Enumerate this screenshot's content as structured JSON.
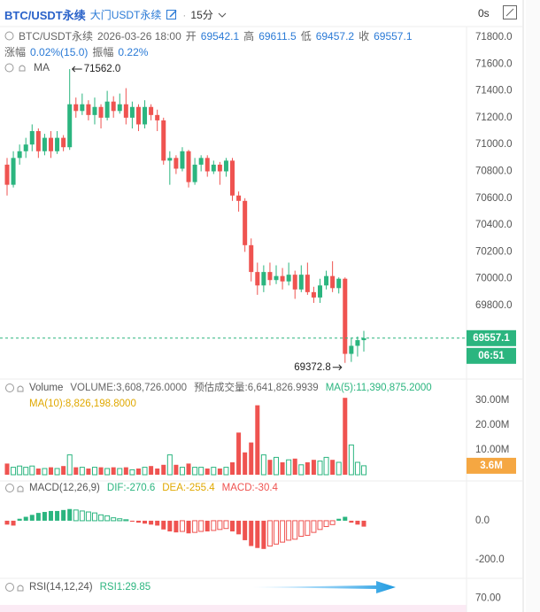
{
  "header": {
    "symbol": "BTC/USDT永续",
    "index_name": "大门USDT永续",
    "interval": "15分",
    "countdown": "0s"
  },
  "info": {
    "symbol": "BTC/USDT永续",
    "time": "2026-03-26 18:00",
    "fields": [
      {
        "label": "开",
        "value": "69542.1"
      },
      {
        "label": "高",
        "value": "69611.5"
      },
      {
        "label": "低",
        "value": "69457.2"
      },
      {
        "label": "收",
        "value": "69557.1"
      }
    ],
    "stats": [
      {
        "label": "涨幅",
        "value": "0.02%(15.0)"
      },
      {
        "label": "振幅",
        "value": "0.22%"
      }
    ]
  },
  "chart_data": [
    {
      "type": "candlestick",
      "legend": "MA",
      "up_color": "#2bb57f",
      "down_color": "#ef5350",
      "open": [
        70850,
        70700,
        70900,
        70950,
        71000,
        71100,
        70950,
        71050,
        70950,
        71050,
        70980,
        71300,
        71250,
        71300,
        71220,
        71280,
        71200,
        71320,
        71250,
        71300,
        71200,
        71280,
        71150,
        71280,
        71220,
        71180,
        70880,
        70900,
        70820,
        70950,
        70720,
        70850,
        70900,
        70800,
        70850,
        70800,
        70880,
        70620,
        70580,
        70250,
        70050,
        69950,
        70050,
        69990,
        70020,
        69980,
        70030,
        69920,
        70030,
        69900,
        69860,
        69950,
        70020,
        69930,
        70000,
        69440,
        69500,
        69542.1
      ],
      "high": [
        70900,
        70950,
        71000,
        71050,
        71150,
        71120,
        71080,
        71100,
        71100,
        71070,
        71562,
        71350,
        71380,
        71330,
        71350,
        71300,
        71400,
        71360,
        71380,
        71420,
        71320,
        71300,
        71330,
        71300,
        71260,
        71200,
        70950,
        70920,
        70980,
        70960,
        70900,
        70920,
        70920,
        70880,
        70870,
        70900,
        70900,
        70650,
        70600,
        70300,
        70120,
        70100,
        70120,
        70100,
        70080,
        70120,
        70060,
        70100,
        70120,
        69940,
        70000,
        70060,
        70130,
        70010,
        70010,
        69560,
        69570,
        69611.5
      ],
      "low": [
        70620,
        70680,
        70850,
        70900,
        70950,
        70900,
        70920,
        70900,
        70930,
        70950,
        70960,
        71200,
        71220,
        71180,
        71150,
        71120,
        71180,
        71200,
        71230,
        71150,
        71120,
        71100,
        71120,
        71180,
        71100,
        70850,
        70700,
        70780,
        70800,
        70680,
        70700,
        70800,
        70760,
        70780,
        70700,
        70760,
        70580,
        70500,
        70200,
        69980,
        69880,
        69900,
        69950,
        69960,
        69920,
        69950,
        69850,
        69900,
        69880,
        69820,
        69820,
        69920,
        69900,
        69890,
        69372.8,
        69380,
        69420,
        69457.2
      ],
      "close": [
        70700,
        70900,
        70950,
        71000,
        71100,
        70950,
        71050,
        70950,
        71050,
        70980,
        71300,
        71250,
        71300,
        71220,
        71280,
        71200,
        71320,
        71250,
        71300,
        71200,
        71280,
        71150,
        71280,
        71220,
        71180,
        70880,
        70900,
        70820,
        70950,
        70720,
        70850,
        70900,
        70800,
        70850,
        70800,
        70880,
        70620,
        70580,
        70250,
        70050,
        69950,
        70050,
        69990,
        70020,
        69980,
        70030,
        69920,
        70030,
        69900,
        69860,
        69950,
        70020,
        69930,
        70000,
        69440,
        69500,
        69542.1,
        69557.1
      ],
      "ylim": [
        69272,
        71879
      ],
      "yticks": [
        {
          "value": 71800,
          "label": "71800.0"
        },
        {
          "value": 71600,
          "label": "71600.0"
        },
        {
          "value": 71400,
          "label": "71400.0"
        },
        {
          "value": 71200,
          "label": "71200.0"
        },
        {
          "value": 71000,
          "label": "71000.0"
        },
        {
          "value": 70800,
          "label": "70800.0"
        },
        {
          "value": 70600,
          "label": "70600.0"
        },
        {
          "value": 70400,
          "label": "70400.0"
        },
        {
          "value": 70200,
          "label": "70200.0"
        },
        {
          "value": 70000,
          "label": "70000.0"
        },
        {
          "value": 69800,
          "label": "69800.0"
        }
      ],
      "annotations": [
        {
          "value": 71562,
          "label": "71562.0"
        },
        {
          "value": 69372.8,
          "label": "69372.8"
        }
      ],
      "last_price": {
        "value": 69557.1,
        "label": "69557.1"
      },
      "countdown": "06:51"
    },
    {
      "type": "volume",
      "legend": "Volume",
      "indicators": [
        {
          "text": "VOLUME:3,608,726.0000",
          "color": "#666"
        },
        {
          "text": "预估成交量:6,641,826.9939",
          "color": "#666"
        },
        {
          "text": "MA(5):11,390,875.2000",
          "color": "#2bb57f"
        },
        {
          "text": "MA(10):8,826,198.8000",
          "color": "#e0a800"
        }
      ],
      "values": [
        4500000,
        3000000,
        3500000,
        3000000,
        3500000,
        2500000,
        2500000,
        3000000,
        2500000,
        3500000,
        8000000,
        3000000,
        3000000,
        2500000,
        3000000,
        3000000,
        2500000,
        3000000,
        2500000,
        3000000,
        2000000,
        2500000,
        3000000,
        3500000,
        2500000,
        4000000,
        8000000,
        4000000,
        3000000,
        4500000,
        3000000,
        3000000,
        2500000,
        3000000,
        2500000,
        3000000,
        5000000,
        17000000,
        9000000,
        13000000,
        28000000,
        8000000,
        6000000,
        7000000,
        5000000,
        6000000,
        6500000,
        4000000,
        5000000,
        6000000,
        5500000,
        7000000,
        6000000,
        5000000,
        31000000,
        12000000,
        5000000,
        3608726
      ],
      "ylim": [
        0,
        32500000
      ],
      "yticks": [
        {
          "value": 30000000,
          "label": "30.00M"
        },
        {
          "value": 20000000,
          "label": "20.00M"
        },
        {
          "value": 10000000,
          "label": "10.00M"
        }
      ],
      "last_value": {
        "value": 3608726,
        "label": "3.6M"
      }
    },
    {
      "type": "macd",
      "legend": "MACD(12,26,9)",
      "indicators": [
        {
          "text": "DIF:-270.6",
          "color": "#2bb57f"
        },
        {
          "text": "DEA:-255.4",
          "color": "#e0a800"
        },
        {
          "text": "MACD:-30.4",
          "color": "#ef5350"
        }
      ],
      "values": [
        -20,
        -25,
        10,
        20,
        30,
        40,
        45,
        50,
        50,
        55,
        60,
        55,
        50,
        45,
        40,
        30,
        25,
        15,
        10,
        5,
        -5,
        -10,
        -15,
        -20,
        -25,
        -45,
        -55,
        -60,
        -55,
        -65,
        -60,
        -55,
        -55,
        -50,
        -45,
        -40,
        -55,
        -70,
        -100,
        -130,
        -140,
        -145,
        -130,
        -120,
        -110,
        -100,
        -95,
        -80,
        -75,
        -60,
        -45,
        -30,
        -20,
        10,
        20,
        -10,
        -20,
        -30.4
      ],
      "ylim": [
        -305,
        127
      ],
      "yticks": [
        {
          "value": 0,
          "label": "0.0"
        },
        {
          "value": -200,
          "label": "-200.0"
        }
      ]
    },
    {
      "type": "rsi",
      "legend": "RSI(14,12,24)",
      "indicators": [
        {
          "text": "RSI1:29.85",
          "color": "#2bb57f"
        }
      ],
      "ylim": [
        60,
        80
      ],
      "yticks": [
        {
          "value": 70,
          "label": "70.00"
        }
      ]
    }
  ]
}
